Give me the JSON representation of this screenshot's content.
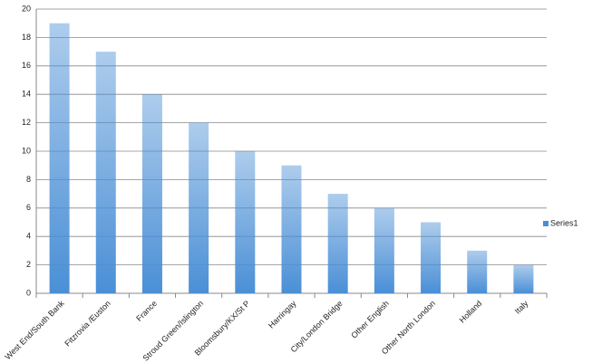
{
  "chart_data": {
    "type": "bar",
    "categories": [
      "West End/South Bank",
      "Fitzrovia /Euston",
      "France",
      "Stroud Green/Islington",
      "Bloomsbury/KX/St P",
      "Harringay",
      "City/London Bridge",
      "Other English",
      "Other North London",
      "Holland",
      "Italy"
    ],
    "series": [
      {
        "name": "Series1",
        "color": "#4a8fd6",
        "values": [
          19,
          17,
          14,
          12,
          10,
          9,
          7,
          6,
          5,
          3,
          2
        ]
      }
    ],
    "ylim": [
      0,
      20
    ],
    "yticks": [
      0,
      2,
      4,
      6,
      8,
      10,
      12,
      14,
      16,
      18,
      20
    ],
    "grid": true,
    "legend": "right"
  }
}
